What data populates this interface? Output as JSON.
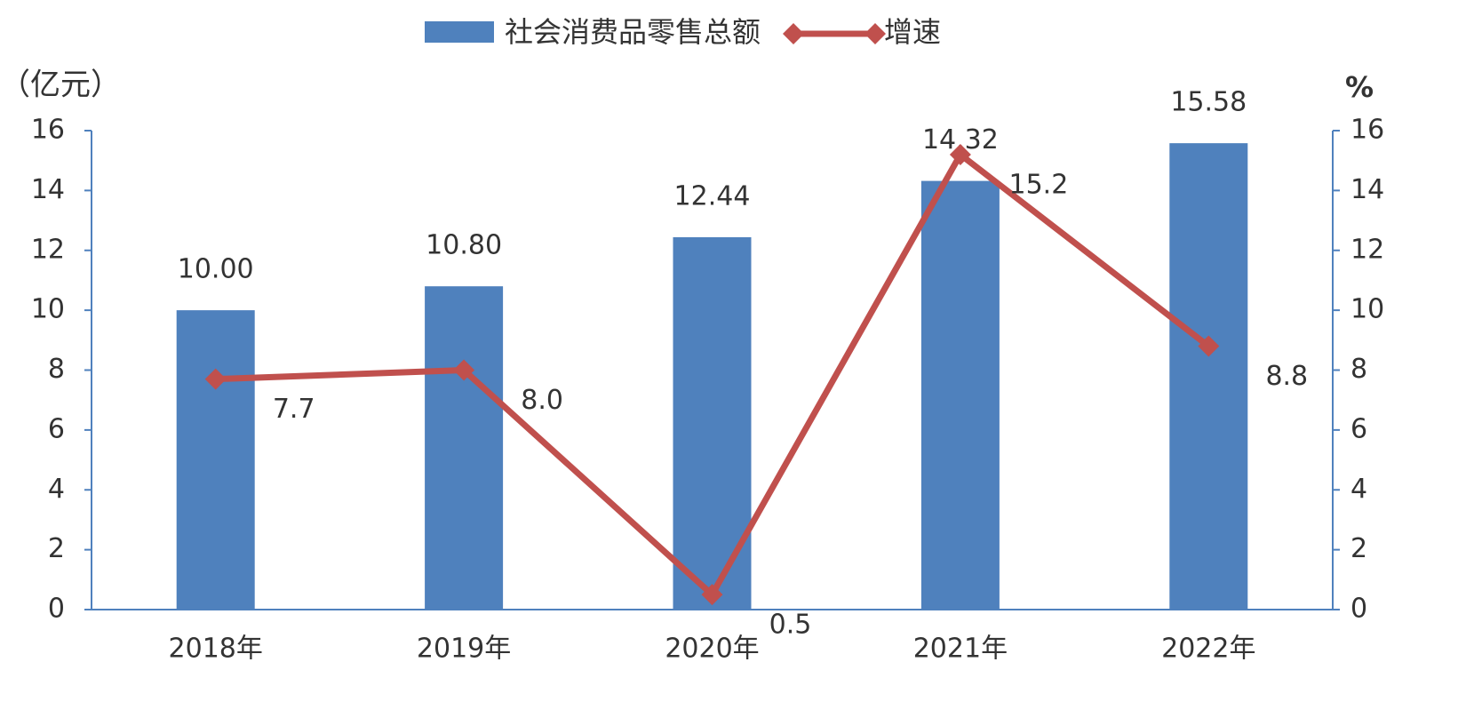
{
  "chart_data": {
    "type": "bar",
    "categories": [
      "2018年",
      "2019年",
      "2020年",
      "2021年",
      "2022年"
    ],
    "series": [
      {
        "name": "社会消费品零售总额",
        "color": "#4f81bd",
        "type": "bar",
        "values": [
          10.0,
          10.8,
          12.44,
          14.32,
          15.58
        ],
        "value_labels": [
          "10.00",
          "10.80",
          "12.44",
          "14.32",
          "15.58"
        ]
      },
      {
        "name": "增速",
        "color": "#c0504d",
        "type": "line",
        "axis": "y2",
        "values": [
          7.7,
          8.0,
          0.5,
          15.2,
          8.8
        ],
        "value_labels": [
          "7.7",
          "8.0",
          "0.5",
          "15.2",
          "8.8"
        ]
      }
    ],
    "y_label": "（亿元）",
    "y2_label": "%",
    "ylim": [
      0,
      16
    ],
    "yticks": [
      0,
      2,
      4,
      6,
      8,
      10,
      12,
      14,
      16
    ],
    "y2lim": [
      0,
      16
    ],
    "y2ticks": [
      0,
      2,
      4,
      6,
      8,
      10,
      12,
      14,
      16
    ],
    "legend": "top"
  }
}
